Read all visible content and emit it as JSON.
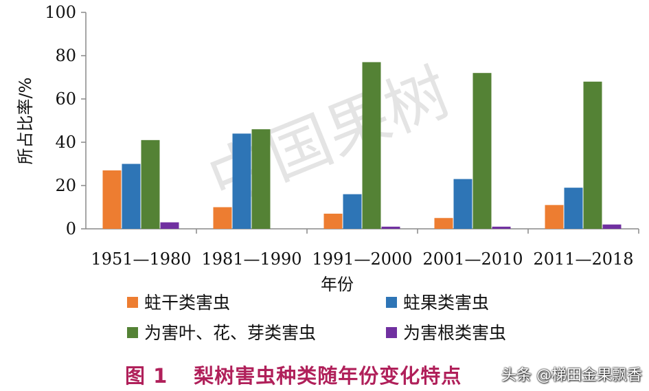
{
  "chart_data": {
    "type": "bar",
    "categories": [
      "1951—1980",
      "1981—1990",
      "1991—2000",
      "2001—2010",
      "2011—2018"
    ],
    "series": [
      {
        "name": "蛀干类害虫",
        "color": "#ed7d31",
        "values": [
          27,
          10,
          7,
          5,
          11
        ]
      },
      {
        "name": "蛀果类害虫",
        "color": "#2e75b6",
        "values": [
          30,
          44,
          16,
          23,
          19
        ]
      },
      {
        "name": "为害叶、花、芽类害虫",
        "color": "#548235",
        "values": [
          41,
          46,
          77,
          72,
          68
        ]
      },
      {
        "name": "为害根类害虫",
        "color": "#7030a0",
        "values": [
          3,
          0,
          1,
          1,
          2
        ]
      }
    ],
    "xlabel": "年份",
    "ylabel": "所占比率/%",
    "ylim": [
      0,
      100
    ],
    "yticks": [
      0,
      20,
      40,
      60,
      80,
      100
    ],
    "grid": false,
    "legend_position": "bottom"
  },
  "caption": {
    "label": "图 1",
    "text": "梨树害虫种类随年份变化特点"
  },
  "watermark": {
    "center": "中国果树",
    "source": "头条 @梯田金果飘香"
  }
}
